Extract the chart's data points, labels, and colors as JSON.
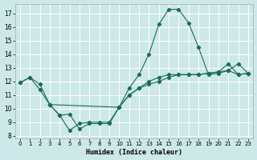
{
  "xlabel": "Humidex (Indice chaleur)",
  "background_color": "#cde8e8",
  "grid_color": "#ffffff",
  "line_color": "#1a6b58",
  "xlim": [
    -0.5,
    23.5
  ],
  "ylim": [
    7.8,
    17.7
  ],
  "yticks": [
    8,
    9,
    10,
    11,
    12,
    13,
    14,
    15,
    16,
    17
  ],
  "xticks": [
    0,
    1,
    2,
    3,
    4,
    5,
    6,
    7,
    8,
    9,
    10,
    11,
    12,
    13,
    14,
    15,
    16,
    17,
    18,
    19,
    20,
    21,
    22,
    23
  ],
  "curve1_x": [
    0,
    1,
    2,
    3,
    4,
    5,
    6,
    7,
    8,
    9,
    10,
    11,
    12,
    13,
    14,
    15,
    16,
    17,
    18,
    19,
    20,
    21,
    22,
    23
  ],
  "curve1_y": [
    11.9,
    12.3,
    11.8,
    10.3,
    9.5,
    9.6,
    8.5,
    8.9,
    8.9,
    8.9,
    10.1,
    11.5,
    12.5,
    14.0,
    16.2,
    17.3,
    17.3,
    16.3,
    14.5,
    12.5,
    12.6,
    12.8,
    13.3,
    12.6
  ],
  "curve2_x": [
    0,
    1,
    2,
    3,
    10,
    11,
    12,
    13,
    14,
    15,
    16,
    17,
    18,
    19,
    20,
    21,
    22,
    23
  ],
  "curve2_y": [
    11.9,
    12.3,
    11.4,
    10.3,
    10.1,
    11.0,
    11.5,
    12.0,
    12.3,
    12.5,
    12.5,
    12.5,
    12.5,
    12.6,
    12.7,
    12.8,
    12.5,
    12.6
  ],
  "curve3_x": [
    3,
    4,
    5,
    6,
    7,
    8,
    9,
    10,
    11,
    12,
    13,
    14,
    15,
    16,
    17,
    18,
    19,
    20,
    21,
    22,
    23
  ],
  "curve3_y": [
    10.3,
    9.5,
    8.4,
    8.9,
    9.0,
    9.0,
    9.0,
    10.1,
    11.0,
    11.5,
    11.8,
    12.0,
    12.3,
    12.5,
    12.5,
    12.5,
    12.6,
    12.7,
    13.3,
    12.5,
    12.6
  ]
}
